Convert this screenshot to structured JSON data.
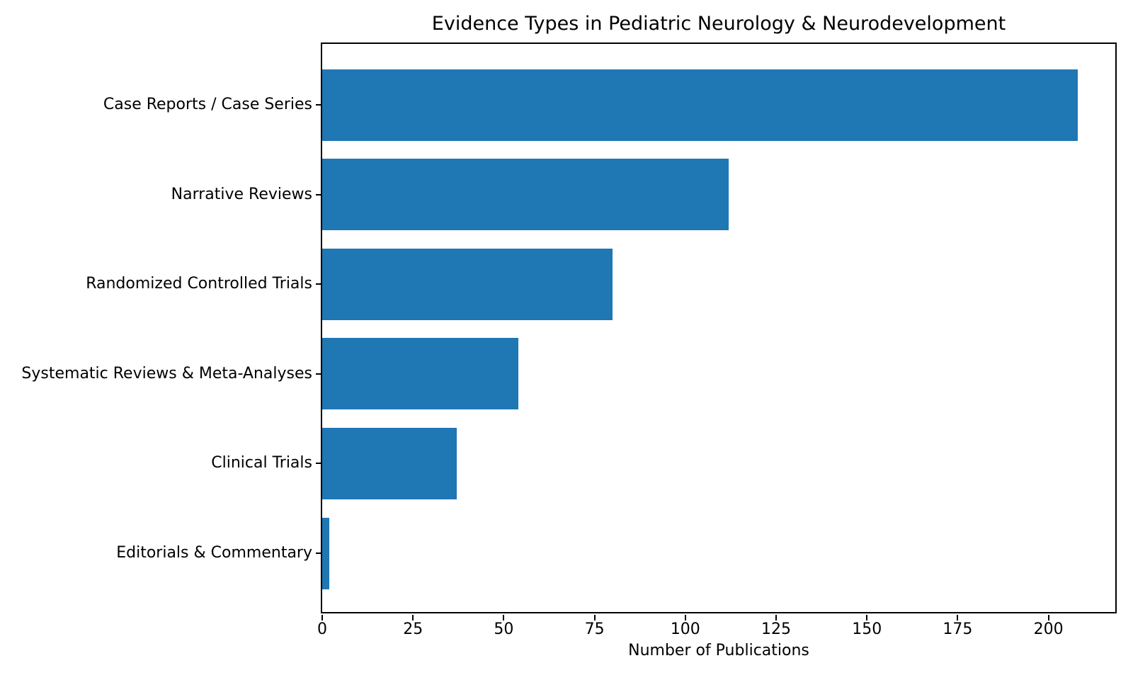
{
  "chart_data": {
    "type": "bar",
    "orientation": "horizontal",
    "title": "Evidence Types in Pediatric Neurology & Neurodevelopment",
    "xlabel": "Number of Publications",
    "ylabel": "",
    "categories": [
      "Case Reports / Case Series",
      "Narrative Reviews",
      "Randomized Controlled Trials",
      "Systematic Reviews & Meta-Analyses",
      "Clinical Trials",
      "Editorials & Commentary"
    ],
    "values": [
      208,
      112,
      80,
      54,
      37,
      2
    ],
    "xticks": [
      0,
      25,
      50,
      75,
      100,
      125,
      150,
      175,
      200
    ],
    "xlim": [
      0,
      218.4
    ],
    "bar_color": "#1f77b4",
    "axis_color": "#000000",
    "background_color": "#ffffff",
    "grid": false,
    "legend": null
  }
}
